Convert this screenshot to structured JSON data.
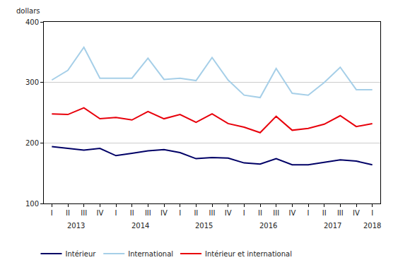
{
  "chart_data": {
    "type": "line",
    "y_label": "dollars",
    "categories": [
      "I",
      "II",
      "III",
      "IV",
      "I",
      "II",
      "III",
      "IV",
      "I",
      "II",
      "III",
      "IV",
      "I",
      "II",
      "III",
      "IV",
      "I",
      "II",
      "III",
      "IV",
      "I"
    ],
    "annotations": [
      {
        "text": "2013",
        "x": 1.5
      },
      {
        "text": "2014",
        "x": 5.5
      },
      {
        "text": "2015",
        "x": 9.5
      },
      {
        "text": "2016",
        "x": 13.5
      },
      {
        "text": "2017",
        "x": 17.5
      },
      {
        "text": "2018",
        "x": 20
      }
    ],
    "series": [
      {
        "name": "Intérieur",
        "color": "#000066",
        "values": [
          194,
          191,
          188,
          191,
          179,
          183,
          187,
          189,
          184,
          174,
          176,
          175,
          167,
          165,
          174,
          164,
          164,
          168,
          172,
          170,
          164
        ]
      },
      {
        "name": "International",
        "color": "#a6cfe8",
        "values": [
          304,
          320,
          358,
          307,
          307,
          307,
          340,
          305,
          307,
          303,
          341,
          304,
          279,
          275,
          323,
          282,
          279,
          300,
          325,
          288,
          288
        ]
      },
      {
        "name": "Intérieur et international",
        "color": "#e8000b",
        "values": [
          248,
          247,
          258,
          240,
          242,
          238,
          252,
          240,
          247,
          234,
          248,
          232,
          226,
          217,
          244,
          221,
          224,
          231,
          245,
          227,
          232
        ]
      }
    ],
    "ylim": [
      100,
      400
    ],
    "yticks": [
      100,
      200,
      300,
      400
    ],
    "grid": true,
    "legend": "bottom"
  }
}
